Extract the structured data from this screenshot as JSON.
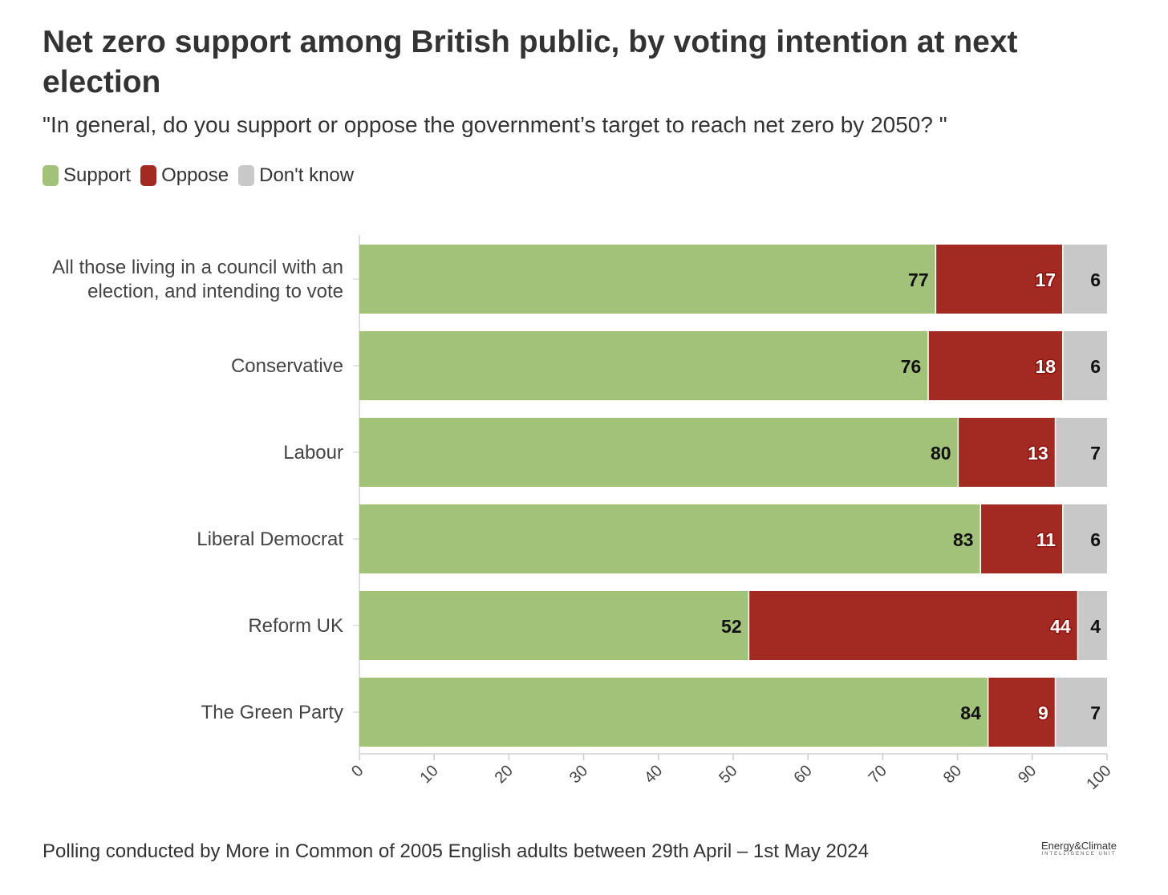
{
  "title": "Net zero support among British public, by voting intention at next election",
  "subtitle": "\"In general, do you support or oppose the government’s target to reach net zero by 2050? \"",
  "footer": "Polling conducted by More in Common of 2005 English adults between 29th April – 1st May 2024",
  "logo": {
    "line1": "Energy&Climate",
    "line2": "INTELLIGENCE UNIT"
  },
  "chart_data": {
    "type": "bar",
    "orientation": "horizontal-stacked",
    "title": "Net zero support among British public, by voting intention at next election",
    "categories": [
      [
        "All those living in a council with an",
        "election, and intending to vote"
      ],
      [
        "Conservative"
      ],
      [
        "Labour"
      ],
      [
        "Liberal Democrat"
      ],
      [
        "Reform UK"
      ],
      [
        "The Green Party"
      ]
    ],
    "series": [
      {
        "name": "Support",
        "color": "#a2c27a",
        "values": [
          77,
          76,
          80,
          83,
          52,
          84
        ]
      },
      {
        "name": "Oppose",
        "color": "#a32a22",
        "values": [
          17,
          18,
          13,
          11,
          44,
          9
        ]
      },
      {
        "name": "Don't know",
        "color": "#c8c8c8",
        "values": [
          6,
          6,
          7,
          6,
          4,
          7
        ]
      }
    ],
    "xlim": [
      0,
      100
    ],
    "xticks": [
      "0",
      "10",
      "20",
      "30",
      "40",
      "50",
      "60",
      "70",
      "80",
      "90",
      "100"
    ],
    "legend": "top-left"
  }
}
